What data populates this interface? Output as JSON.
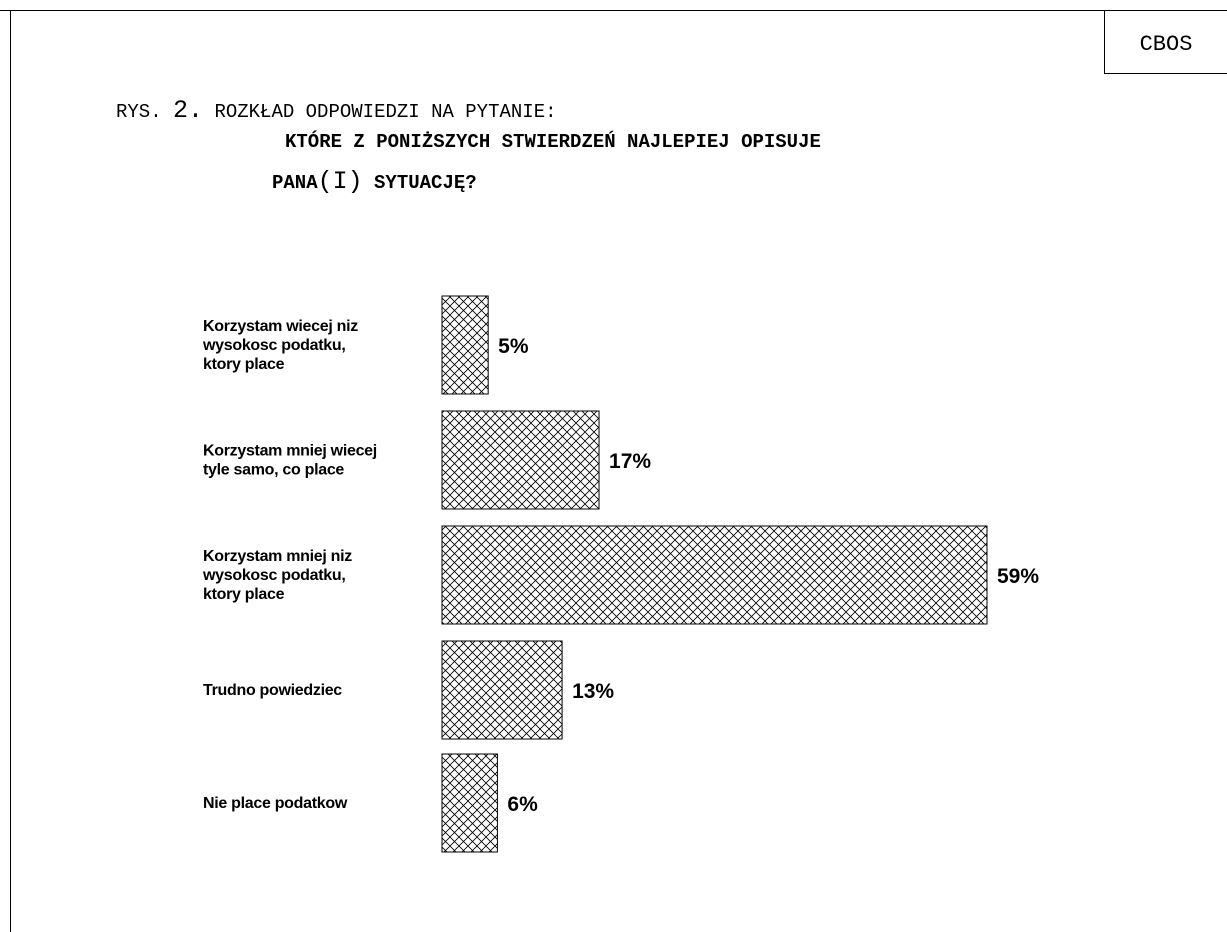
{
  "header": {
    "corner_label": "CBOS",
    "fig_prefix": "RYS.",
    "fig_number": "2.",
    "fig_caption": "ROZKŁAD ODPOWIEDZI NA PYTANIE:",
    "question_line1": "KTÓRE Z PONIŻSZYCH STWIERDZEŃ NAJLEPIEJ OPISUJE",
    "question_line2_a": "PANA",
    "question_line2_paren": "(I)",
    "question_line2_b": "SYTUACJĘ?"
  },
  "chart_data": {
    "type": "bar",
    "orientation": "horizontal",
    "pattern": "crosshatch",
    "categories": [
      [
        "Korzystam wiecej niz",
        "wysokosc podatku,",
        "ktory place"
      ],
      [
        "Korzystam mniej wiecej",
        "tyle samo, co place"
      ],
      [
        "Korzystam mniej niz",
        "wysokosc podatku,",
        "ktory place"
      ],
      [
        "Trudno powiedziec"
      ],
      [
        "Nie place podatkow"
      ]
    ],
    "values": [
      5,
      17,
      59,
      13,
      6
    ],
    "value_labels": [
      "5%",
      "17%",
      "59%",
      "13%",
      "6%"
    ],
    "xlim": [
      0,
      59
    ]
  }
}
